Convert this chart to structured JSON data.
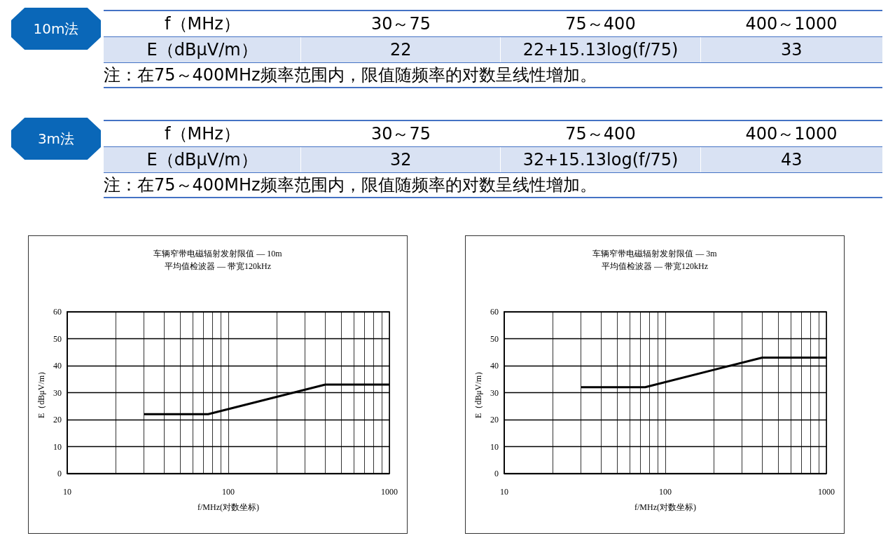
{
  "chart_data": [
    {
      "type": "other",
      "title": "10m法",
      "annotations": [
        "f（MHz）",
        "30～75",
        "75～400",
        "400～1000",
        "E（dBμV/m）",
        "22",
        "22+15.13log(f/75)",
        "33",
        "注：在75～400MHz频率范围内，限值随频率的对数呈线性增加。"
      ]
    },
    {
      "type": "other",
      "title": "3m法",
      "annotations": [
        "f（MHz）",
        "30～75",
        "75～400",
        "400～1000",
        "E（dBμV/m）",
        "32",
        "32+15.13log(f/75)",
        "43",
        "注：在75～400MHz频率范围内，限值随频率的对数呈线性增加。"
      ]
    },
    {
      "type": "line",
      "title": "车辆窄带电磁辐射发射限值 — 10m",
      "subtitle": "平均值检波器 — 带宽120kHz",
      "xlabel": "f/MHz(对数坐标)",
      "ylabel": "E（dBμV/m）",
      "log": "x",
      "grid": true,
      "marker": "none",
      "x": [
        30,
        75,
        400,
        1000
      ],
      "series": [
        {
          "color": "#000000",
          "values": [
            22,
            22,
            33,
            33
          ]
        }
      ],
      "xlim": [
        10,
        1000
      ],
      "xticks": [
        10,
        {
          "value": 20,
          "label": null
        },
        {
          "value": 30,
          "label": null
        },
        {
          "value": 40,
          "label": null
        },
        {
          "value": 50,
          "label": null
        },
        {
          "value": 60,
          "label": null
        },
        {
          "value": 70,
          "label": null
        },
        {
          "value": 80,
          "label": null
        },
        {
          "value": 90,
          "label": null
        },
        100,
        {
          "value": 200,
          "label": null
        },
        {
          "value": 300,
          "label": null
        },
        {
          "value": 400,
          "label": null
        },
        {
          "value": 500,
          "label": null
        },
        {
          "value": 600,
          "label": null
        },
        {
          "value": 700,
          "label": null
        },
        {
          "value": 800,
          "label": null
        },
        {
          "value": 900,
          "label": null
        },
        1000
      ],
      "ylim": [
        0,
        60
      ],
      "yticks": [
        0,
        10,
        20,
        30,
        40,
        50,
        60
      ]
    },
    {
      "type": "line",
      "title": "车辆窄带电磁辐射发射限值 — 3m",
      "subtitle": "平均值检波器 — 带宽120kHz",
      "xlabel": "f/MHz(对数坐标)",
      "ylabel": "E（dBμV/m）",
      "log": "x",
      "grid": true,
      "marker": "none",
      "x": [
        30,
        75,
        400,
        1000
      ],
      "series": [
        {
          "color": "#000000",
          "values": [
            32,
            32,
            43,
            43
          ]
        }
      ],
      "xlim": [
        10,
        1000
      ],
      "xticks": [
        10,
        {
          "value": 20,
          "label": null
        },
        {
          "value": 30,
          "label": null
        },
        {
          "value": 40,
          "label": null
        },
        {
          "value": 50,
          "label": null
        },
        {
          "value": 60,
          "label": null
        },
        {
          "value": 70,
          "label": null
        },
        {
          "value": 80,
          "label": null
        },
        {
          "value": 90,
          "label": null
        },
        100,
        {
          "value": 200,
          "label": null
        },
        {
          "value": 300,
          "label": null
        },
        {
          "value": 400,
          "label": null
        },
        {
          "value": 500,
          "label": null
        },
        {
          "value": 600,
          "label": null
        },
        {
          "value": 700,
          "label": null
        },
        {
          "value": 800,
          "label": null
        },
        {
          "value": 900,
          "label": null
        },
        1000
      ],
      "ylim": [
        0,
        60
      ],
      "yticks": [
        0,
        10,
        20,
        30,
        40,
        50,
        60
      ]
    }
  ]
}
